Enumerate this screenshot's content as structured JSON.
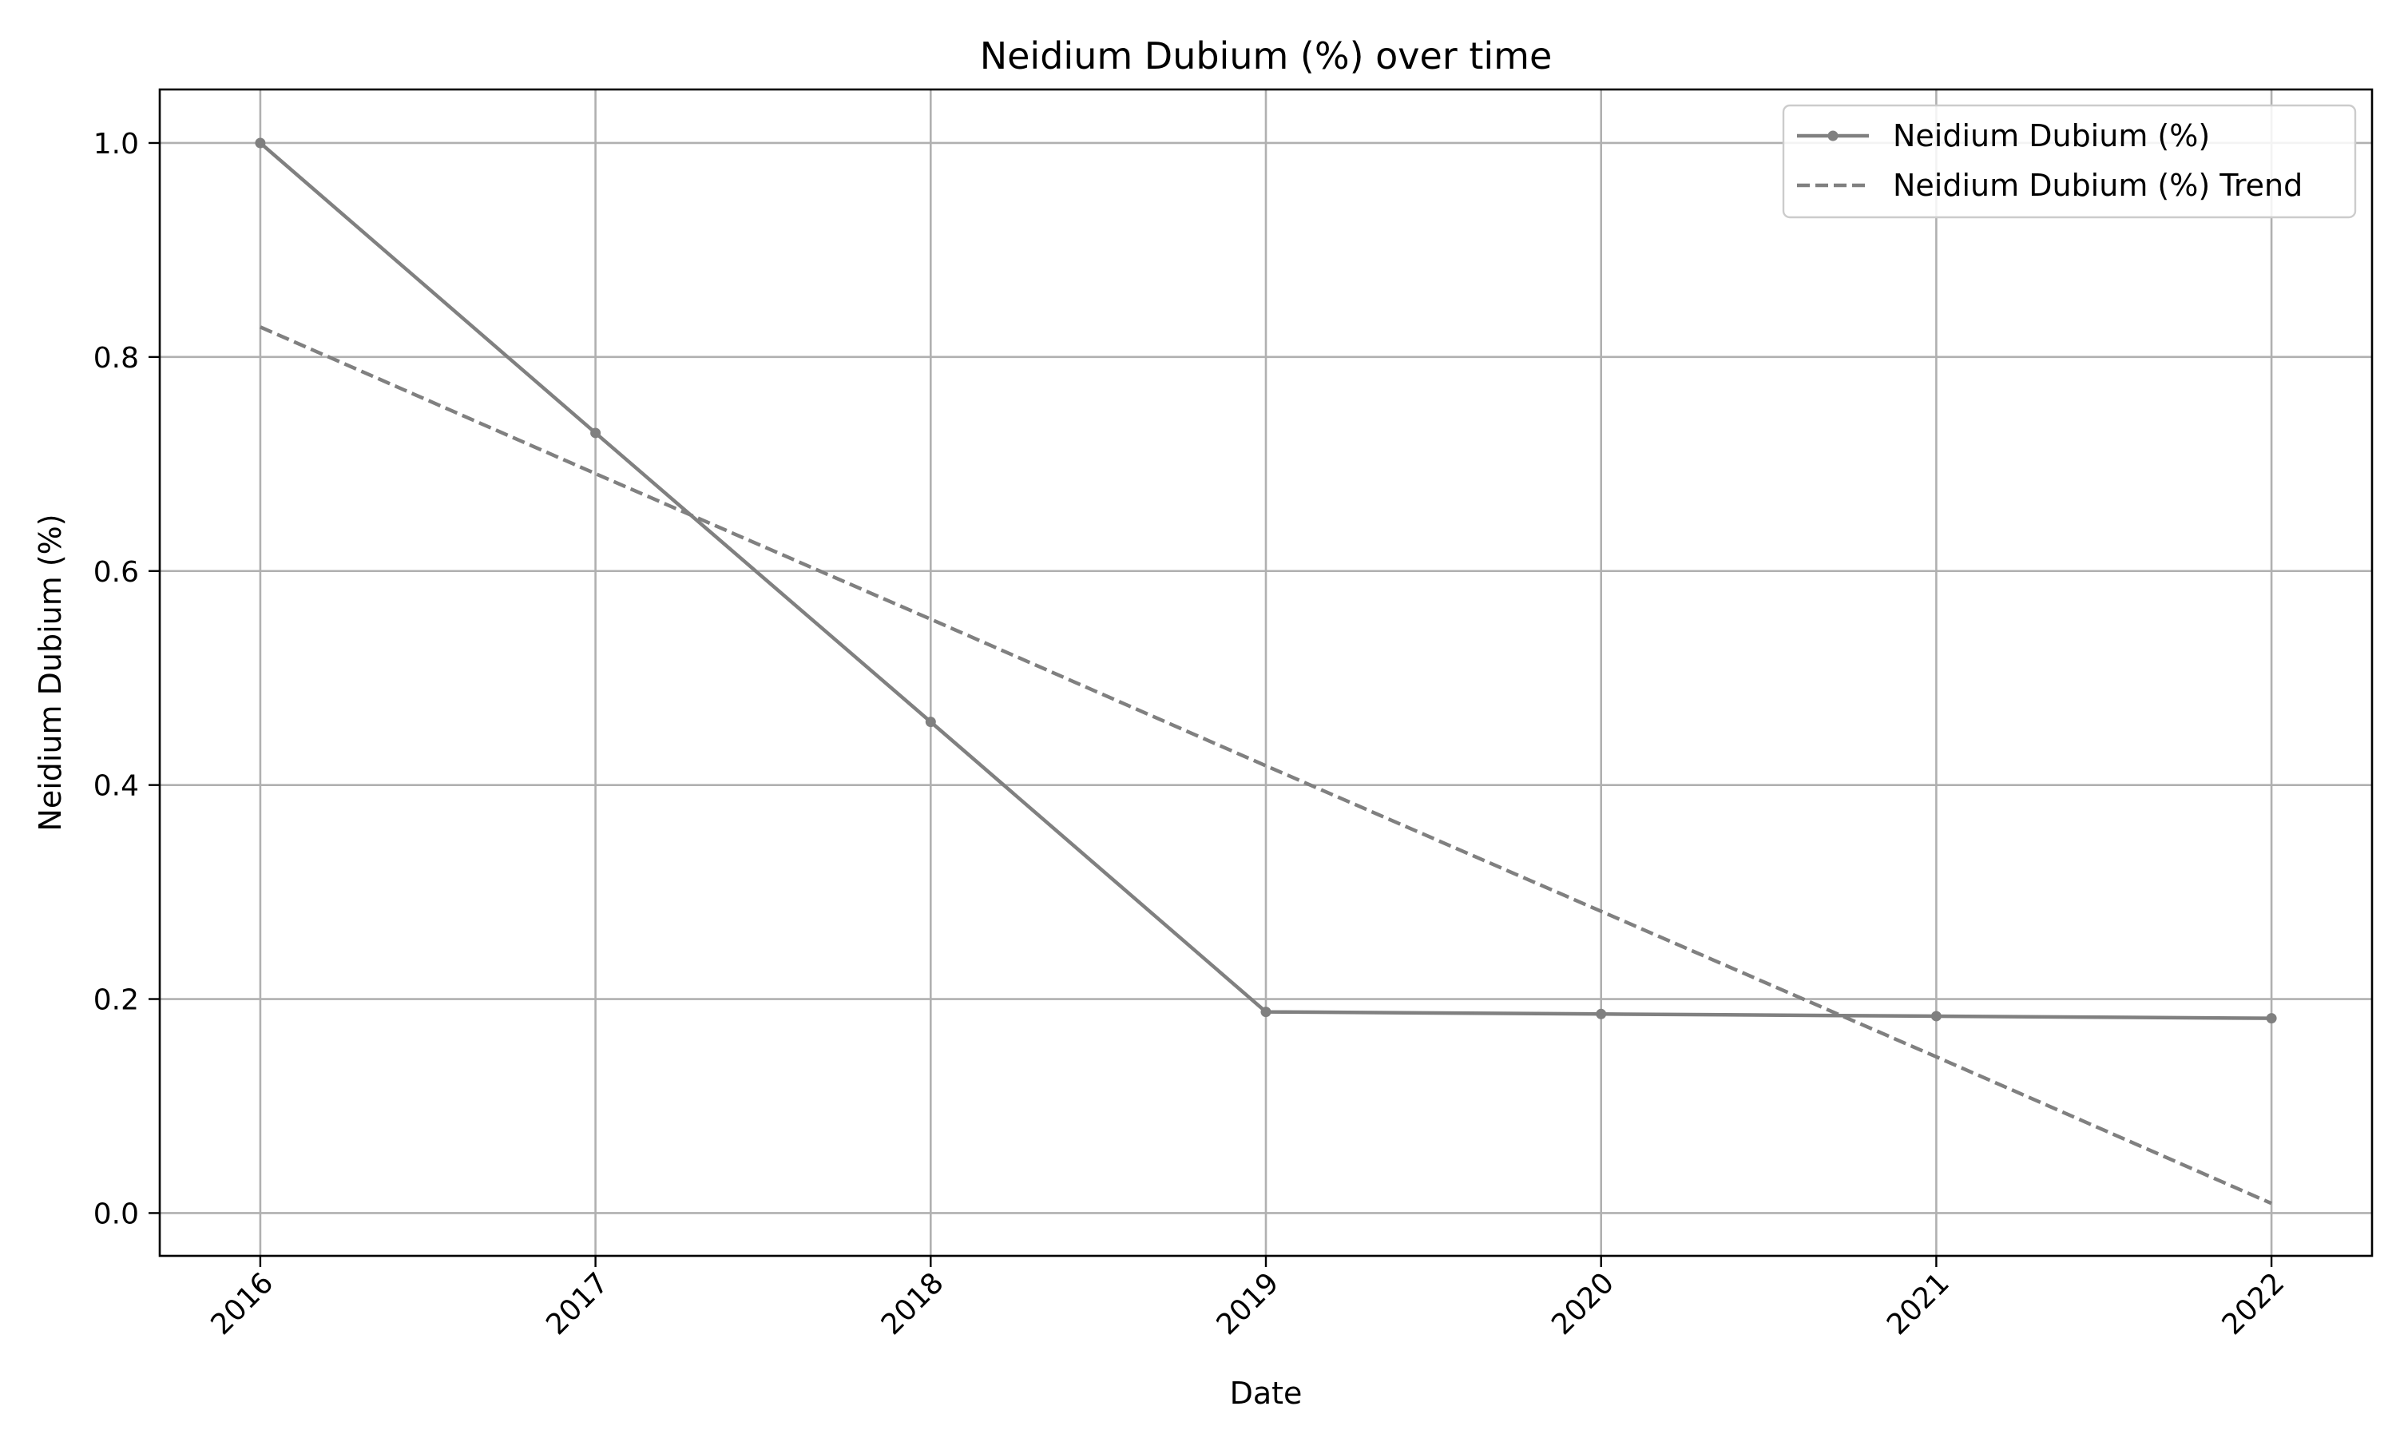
{
  "chart_data": {
    "type": "line",
    "title": "Neidium Dubium (%) over time",
    "xlabel": "Date",
    "ylabel": "Neidium Dubium (%)",
    "x": [
      "2016",
      "2017",
      "2018",
      "2019",
      "2020",
      "2021",
      "2022"
    ],
    "xlim": [
      2015.7,
      2022.3
    ],
    "ylim": [
      -0.04,
      1.05
    ],
    "yticks": [
      "0.0",
      "0.2",
      "0.4",
      "0.6",
      "0.8",
      "1.0"
    ],
    "grid": true,
    "legend_position": "top-right",
    "series": [
      {
        "name": "Neidium Dubium (%)",
        "style": "solid-with-markers",
        "color": "#808080",
        "values": [
          1.0,
          0.729,
          0.459,
          0.188,
          0.186,
          0.184,
          0.182
        ]
      },
      {
        "name": "Neidium Dubium (%) Trend",
        "style": "dashed",
        "color": "#808080",
        "values": [
          0.828,
          0.691,
          0.555,
          0.418,
          0.282,
          0.146,
          0.009
        ]
      }
    ]
  }
}
